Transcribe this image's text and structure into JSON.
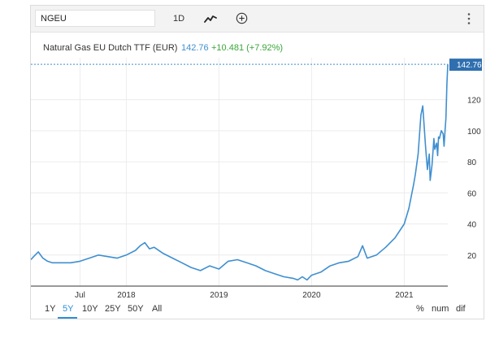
{
  "toolbar": {
    "symbol": "NGEU",
    "interval": "1D"
  },
  "header": {
    "name": "Natural Gas EU Dutch TTF (EUR)",
    "price": "142.76",
    "change": "+10.481 (+7.92%)"
  },
  "colors": {
    "line": "#3f8fd0",
    "price": "#3f8fd0",
    "change": "#3aa63a",
    "tag_bg": "#2f6fb0",
    "active": "#2f8fd8"
  },
  "icons": {
    "chart_type": "line-chart-icon",
    "compare": "plus-circle-icon",
    "menu": "vertical-dots-icon"
  },
  "chart_data": {
    "type": "line",
    "y_ticks": [
      "20",
      "40",
      "60",
      "80",
      "100",
      "120"
    ],
    "y_tick_values": [
      20,
      40,
      60,
      80,
      100,
      120
    ],
    "x_ticks": [
      "Jul",
      "2018",
      "2019",
      "2020",
      "2021"
    ],
    "x_tick_values": [
      2017.5,
      2018.0,
      2019.0,
      2020.0,
      2021.0
    ],
    "ylim": [
      0,
      147
    ],
    "xlim": [
      2016.97,
      2021.47
    ],
    "last_value_label": "142.76",
    "series": [
      {
        "x": [
          2016.97,
          2017.0,
          2017.05,
          2017.1,
          2017.15,
          2017.2,
          2017.3,
          2017.4,
          2017.5,
          2017.6,
          2017.7,
          2017.8,
          2017.9,
          2018.0,
          2018.1,
          2018.15,
          2018.2,
          2018.25,
          2018.3,
          2018.4,
          2018.5,
          2018.6,
          2018.7,
          2018.8,
          2018.9,
          2019.0,
          2019.1,
          2019.2,
          2019.3,
          2019.4,
          2019.5,
          2019.6,
          2019.7,
          2019.8,
          2019.85,
          2019.9,
          2019.95,
          2020.0,
          2020.1,
          2020.2,
          2020.3,
          2020.4,
          2020.5,
          2020.55,
          2020.6,
          2020.7,
          2020.8,
          2020.9,
          2021.0,
          2021.05,
          2021.1,
          2021.12,
          2021.15,
          2021.18,
          2021.2,
          2021.23,
          2021.25,
          2021.27,
          2021.28,
          2021.3,
          2021.32,
          2021.33,
          2021.35,
          2021.36,
          2021.37,
          2021.38,
          2021.4,
          2021.42,
          2021.43,
          2021.44,
          2021.45,
          2021.46,
          2021.47
        ],
        "values": [
          17,
          19,
          22,
          18,
          16,
          15,
          15,
          15,
          16,
          18,
          20,
          19,
          18,
          20,
          23,
          26,
          28,
          24,
          25,
          21,
          18,
          15,
          12,
          10,
          13,
          11,
          16,
          17,
          15,
          13,
          10,
          8,
          6,
          5,
          4,
          6,
          4,
          7,
          9,
          13,
          15,
          16,
          19,
          26,
          18,
          20,
          25,
          31,
          40,
          50,
          65,
          72,
          85,
          110,
          116,
          90,
          75,
          85,
          68,
          78,
          95,
          88,
          92,
          84,
          96,
          95,
          100,
          98,
          90,
          100,
          108,
          130,
          142.76
        ]
      }
    ]
  },
  "range": {
    "buttons": [
      "1Y",
      "5Y",
      "10Y",
      "25Y",
      "50Y",
      "All"
    ],
    "active": "5Y",
    "scale": [
      "%",
      "num",
      "dif"
    ]
  }
}
